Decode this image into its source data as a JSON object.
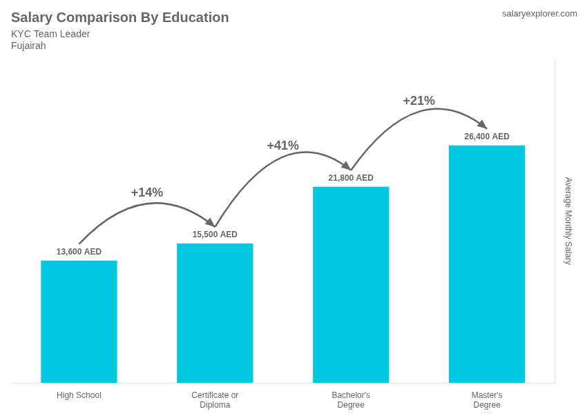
{
  "chart_data": {
    "type": "bar",
    "title": "Salary Comparison By Education",
    "subtitle": [
      "KYC Team Leader",
      "Fujairah"
    ],
    "source": "salaryexplorer.com",
    "ylabel": "Average Monthly Salary",
    "categories": [
      "High School",
      "Certificate or\nDiploma",
      "Bachelor's\nDegree",
      "Master's\nDegree"
    ],
    "values": [
      13600,
      15500,
      21800,
      26400
    ],
    "value_labels": [
      "13,600 AED",
      "15,500 AED",
      "21,800 AED",
      "26,400 AED"
    ],
    "data_labels": true,
    "annotations": [
      "+14%",
      "+41%",
      "+21%"
    ],
    "color": "#00c8e0",
    "ylim": [
      0,
      36000
    ],
    "grid": false,
    "tick_labels": "x"
  }
}
